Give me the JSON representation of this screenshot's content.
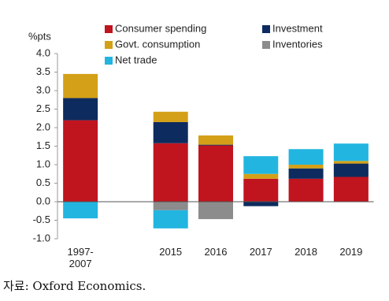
{
  "chart_data": {
    "type": "stacked_bar",
    "y_axis_label": "%pts",
    "categories": [
      "1997-2007",
      null,
      "2015",
      "2016",
      "2017",
      "2018",
      "2019"
    ],
    "series": [
      {
        "name": "Consumer spending",
        "color": "#c0141e",
        "values": [
          2.2,
          null,
          1.58,
          1.52,
          0.62,
          0.62,
          0.67
        ]
      },
      {
        "name": "Investment",
        "color": "#0d2b5e",
        "values": [
          0.6,
          null,
          0.57,
          0.02,
          -0.12,
          0.28,
          0.36
        ]
      },
      {
        "name": "Govt. consumption",
        "color": "#d4a017",
        "values": [
          0.65,
          null,
          0.28,
          0.25,
          0.13,
          0.1,
          0.07
        ]
      },
      {
        "name": "Inventories",
        "color": "#8c8c8c",
        "values": [
          0,
          null,
          -0.23,
          -0.47,
          0,
          0,
          0
        ]
      },
      {
        "name": "Net trade",
        "color": "#22b5e0",
        "values": [
          -0.45,
          null,
          -0.49,
          0,
          0.48,
          0.42,
          0.47
        ]
      }
    ],
    "ylim": [
      -1.0,
      4.0
    ],
    "yticks": [
      {
        "value": 4.0,
        "label": "4.0"
      },
      {
        "value": 3.5,
        "label": "3.5"
      },
      {
        "value": 3.0,
        "label": "3.0"
      },
      {
        "value": 2.5,
        "label": "2.5"
      },
      {
        "value": 2.0,
        "label": "2.0"
      },
      {
        "value": 1.5,
        "label": "1.5"
      },
      {
        "value": 1.0,
        "label": "1.0"
      },
      {
        "value": 0.5,
        "label": "0.5"
      },
      {
        "value": 0.0,
        "label": "0.0"
      },
      {
        "value": -0.5,
        "label": "-0.5"
      },
      {
        "value": -1.0,
        "label": "-1.0"
      }
    ],
    "source": "자료: Oxford Economics."
  }
}
